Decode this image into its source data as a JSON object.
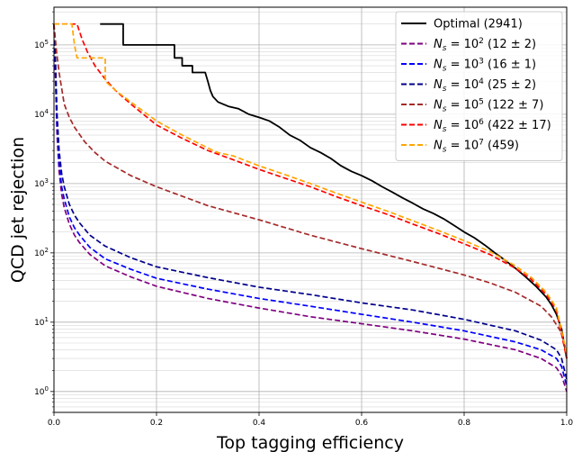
{
  "chart_data": {
    "type": "line",
    "title": "",
    "xlabel": "Top tagging efficiency",
    "ylabel": "QCD jet rejection",
    "xlim": [
      0.0,
      1.0
    ],
    "ylim": [
      0.5,
      350000
    ],
    "yscale": "log",
    "grid": true,
    "legend_position": "top-right",
    "x_ticks": [
      "0.0",
      "0.2",
      "0.4",
      "0.6",
      "0.8",
      "1.0"
    ],
    "y_ticks": [
      {
        "base": "10",
        "exp": "0"
      },
      {
        "base": "10",
        "exp": "1"
      },
      {
        "base": "10",
        "exp": "2"
      },
      {
        "base": "10",
        "exp": "3"
      },
      {
        "base": "10",
        "exp": "4"
      },
      {
        "base": "10",
        "exp": "5"
      }
    ],
    "series": [
      {
        "name": "Optimal (2941)",
        "legend": {
          "prefix": "",
          "base": "",
          "exp": "",
          "suffix": "Optimal (2941)"
        },
        "color": "#000000",
        "dashed": false,
        "points": [
          [
            0.09,
            200000
          ],
          [
            0.135,
            200000
          ],
          [
            0.135,
            100000
          ],
          [
            0.235,
            100000
          ],
          [
            0.235,
            65000
          ],
          [
            0.25,
            65000
          ],
          [
            0.25,
            50000
          ],
          [
            0.27,
            50000
          ],
          [
            0.27,
            40000
          ],
          [
            0.295,
            40000
          ],
          [
            0.3,
            30000
          ],
          [
            0.305,
            22000
          ],
          [
            0.31,
            18000
          ],
          [
            0.32,
            15000
          ],
          [
            0.34,
            13000
          ],
          [
            0.36,
            12000
          ],
          [
            0.38,
            10000
          ],
          [
            0.4,
            9000
          ],
          [
            0.42,
            8000
          ],
          [
            0.44,
            6500
          ],
          [
            0.46,
            5000
          ],
          [
            0.48,
            4200
          ],
          [
            0.5,
            3300
          ],
          [
            0.52,
            2800
          ],
          [
            0.54,
            2300
          ],
          [
            0.56,
            1800
          ],
          [
            0.58,
            1500
          ],
          [
            0.6,
            1300
          ],
          [
            0.62,
            1100
          ],
          [
            0.64,
            900
          ],
          [
            0.66,
            750
          ],
          [
            0.68,
            620
          ],
          [
            0.7,
            520
          ],
          [
            0.72,
            430
          ],
          [
            0.74,
            370
          ],
          [
            0.76,
            310
          ],
          [
            0.78,
            250
          ],
          [
            0.8,
            200
          ],
          [
            0.82,
            165
          ],
          [
            0.84,
            130
          ],
          [
            0.86,
            100
          ],
          [
            0.88,
            78
          ],
          [
            0.9,
            60
          ],
          [
            0.92,
            45
          ],
          [
            0.94,
            33
          ],
          [
            0.96,
            23
          ],
          [
            0.97,
            18
          ],
          [
            0.98,
            13
          ],
          [
            0.99,
            8
          ],
          [
            1.0,
            3
          ]
        ]
      },
      {
        "name": "N_s = 10^2 (12 ± 2)",
        "legend": {
          "prefix": "N",
          "base": " = 10",
          "exp": "2",
          "suffix": " (12 ± 2)"
        },
        "color": "#800080",
        "dashed": true,
        "points": [
          [
            0.0,
            200000
          ],
          [
            0.003,
            30000
          ],
          [
            0.006,
            5000
          ],
          [
            0.01,
            1500
          ],
          [
            0.015,
            700
          ],
          [
            0.02,
            450
          ],
          [
            0.03,
            260
          ],
          [
            0.04,
            180
          ],
          [
            0.05,
            140
          ],
          [
            0.07,
            95
          ],
          [
            0.1,
            65
          ],
          [
            0.15,
            45
          ],
          [
            0.2,
            33
          ],
          [
            0.3,
            22
          ],
          [
            0.4,
            16
          ],
          [
            0.5,
            12
          ],
          [
            0.6,
            9.5
          ],
          [
            0.7,
            7.5
          ],
          [
            0.8,
            5.7
          ],
          [
            0.9,
            4
          ],
          [
            0.95,
            3
          ],
          [
            0.98,
            2.2
          ],
          [
            0.99,
            1.7
          ],
          [
            1.0,
            1
          ]
        ]
      },
      {
        "name": "N_s = 10^3 (16 ± 1)",
        "legend": {
          "prefix": "N",
          "base": " = 10",
          "exp": "3",
          "suffix": " (16 ± 1)"
        },
        "color": "#0000ff",
        "dashed": true,
        "points": [
          [
            0.0,
            200000
          ],
          [
            0.003,
            40000
          ],
          [
            0.006,
            7000
          ],
          [
            0.01,
            2000
          ],
          [
            0.015,
            900
          ],
          [
            0.02,
            600
          ],
          [
            0.03,
            330
          ],
          [
            0.04,
            230
          ],
          [
            0.05,
            180
          ],
          [
            0.07,
            120
          ],
          [
            0.1,
            82
          ],
          [
            0.15,
            58
          ],
          [
            0.2,
            43
          ],
          [
            0.3,
            30
          ],
          [
            0.4,
            22
          ],
          [
            0.5,
            17
          ],
          [
            0.6,
            13
          ],
          [
            0.7,
            10
          ],
          [
            0.8,
            7.5
          ],
          [
            0.9,
            5.2
          ],
          [
            0.95,
            4
          ],
          [
            0.98,
            3
          ],
          [
            0.99,
            2.3
          ],
          [
            1.0,
            1.2
          ]
        ]
      },
      {
        "name": "N_s = 10^4 (25 ± 2)",
        "legend": {
          "prefix": "N",
          "base": " = 10",
          "exp": "4",
          "suffix": " (25 ± 2)"
        },
        "color": "#00008b",
        "dashed": true,
        "points": [
          [
            0.0,
            200000
          ],
          [
            0.003,
            60000
          ],
          [
            0.006,
            10000
          ],
          [
            0.01,
            3000
          ],
          [
            0.015,
            1400
          ],
          [
            0.02,
            900
          ],
          [
            0.03,
            500
          ],
          [
            0.04,
            350
          ],
          [
            0.05,
            270
          ],
          [
            0.07,
            180
          ],
          [
            0.1,
            125
          ],
          [
            0.15,
            85
          ],
          [
            0.2,
            63
          ],
          [
            0.3,
            44
          ],
          [
            0.4,
            32
          ],
          [
            0.5,
            25
          ],
          [
            0.6,
            19
          ],
          [
            0.7,
            15
          ],
          [
            0.8,
            11
          ],
          [
            0.9,
            7.5
          ],
          [
            0.95,
            5.5
          ],
          [
            0.98,
            4
          ],
          [
            0.99,
            3
          ],
          [
            1.0,
            1.5
          ]
        ]
      },
      {
        "name": "N_s = 10^5 (122 ± 7)",
        "legend": {
          "prefix": "N",
          "base": " = 10",
          "exp": "5",
          "suffix": " (122 ± 7)"
        },
        "color": "#a52a2a",
        "dashed": true,
        "points": [
          [
            0.0,
            200000
          ],
          [
            0.005,
            80000
          ],
          [
            0.01,
            40000
          ],
          [
            0.02,
            14000
          ],
          [
            0.03,
            9000
          ],
          [
            0.04,
            6500
          ],
          [
            0.06,
            4000
          ],
          [
            0.08,
            2800
          ],
          [
            0.1,
            2100
          ],
          [
            0.15,
            1300
          ],
          [
            0.2,
            900
          ],
          [
            0.3,
            480
          ],
          [
            0.4,
            300
          ],
          [
            0.5,
            180
          ],
          [
            0.6,
            115
          ],
          [
            0.7,
            75
          ],
          [
            0.8,
            48
          ],
          [
            0.85,
            37
          ],
          [
            0.9,
            27
          ],
          [
            0.95,
            17
          ],
          [
            0.97,
            12
          ],
          [
            0.99,
            7
          ],
          [
            1.0,
            3
          ]
        ]
      },
      {
        "name": "N_s = 10^6 (422 ± 17)",
        "legend": {
          "prefix": "N",
          "base": " = 10",
          "exp": "6",
          "suffix": " (422 ± 17)"
        },
        "color": "#ff0000",
        "dashed": true,
        "points": [
          [
            0.0,
            200000
          ],
          [
            0.03,
            200000
          ],
          [
            0.045,
            200000
          ],
          [
            0.055,
            120000
          ],
          [
            0.065,
            80000
          ],
          [
            0.08,
            50000
          ],
          [
            0.1,
            32000
          ],
          [
            0.12,
            22000
          ],
          [
            0.15,
            14000
          ],
          [
            0.2,
            7000
          ],
          [
            0.25,
            4500
          ],
          [
            0.3,
            3000
          ],
          [
            0.35,
            2200
          ],
          [
            0.4,
            1600
          ],
          [
            0.45,
            1200
          ],
          [
            0.5,
            900
          ],
          [
            0.55,
            650
          ],
          [
            0.6,
            480
          ],
          [
            0.65,
            360
          ],
          [
            0.7,
            260
          ],
          [
            0.75,
            190
          ],
          [
            0.8,
            135
          ],
          [
            0.85,
            95
          ],
          [
            0.9,
            60
          ],
          [
            0.93,
            42
          ],
          [
            0.96,
            25
          ],
          [
            0.98,
            15
          ],
          [
            1.0,
            3
          ]
        ]
      },
      {
        "name": "N_s = 10^7 (459)",
        "legend": {
          "prefix": "N",
          "base": " = 10",
          "exp": "7",
          "suffix": " (459)"
        },
        "color": "#ffa500",
        "dashed": true,
        "points": [
          [
            0.0,
            200000
          ],
          [
            0.035,
            200000
          ],
          [
            0.04,
            100000
          ],
          [
            0.045,
            65000
          ],
          [
            0.1,
            65000
          ],
          [
            0.1,
            30000
          ],
          [
            0.12,
            22000
          ],
          [
            0.15,
            15000
          ],
          [
            0.2,
            8000
          ],
          [
            0.25,
            5000
          ],
          [
            0.31,
            3000
          ],
          [
            0.32,
            2800
          ],
          [
            0.35,
            2500
          ],
          [
            0.4,
            1800
          ],
          [
            0.45,
            1350
          ],
          [
            0.5,
            1000
          ],
          [
            0.55,
            730
          ],
          [
            0.6,
            540
          ],
          [
            0.65,
            400
          ],
          [
            0.7,
            290
          ],
          [
            0.75,
            210
          ],
          [
            0.8,
            150
          ],
          [
            0.85,
            105
          ],
          [
            0.9,
            65
          ],
          [
            0.93,
            45
          ],
          [
            0.96,
            27
          ],
          [
            0.98,
            16
          ],
          [
            1.0,
            3.5
          ]
        ]
      }
    ]
  }
}
